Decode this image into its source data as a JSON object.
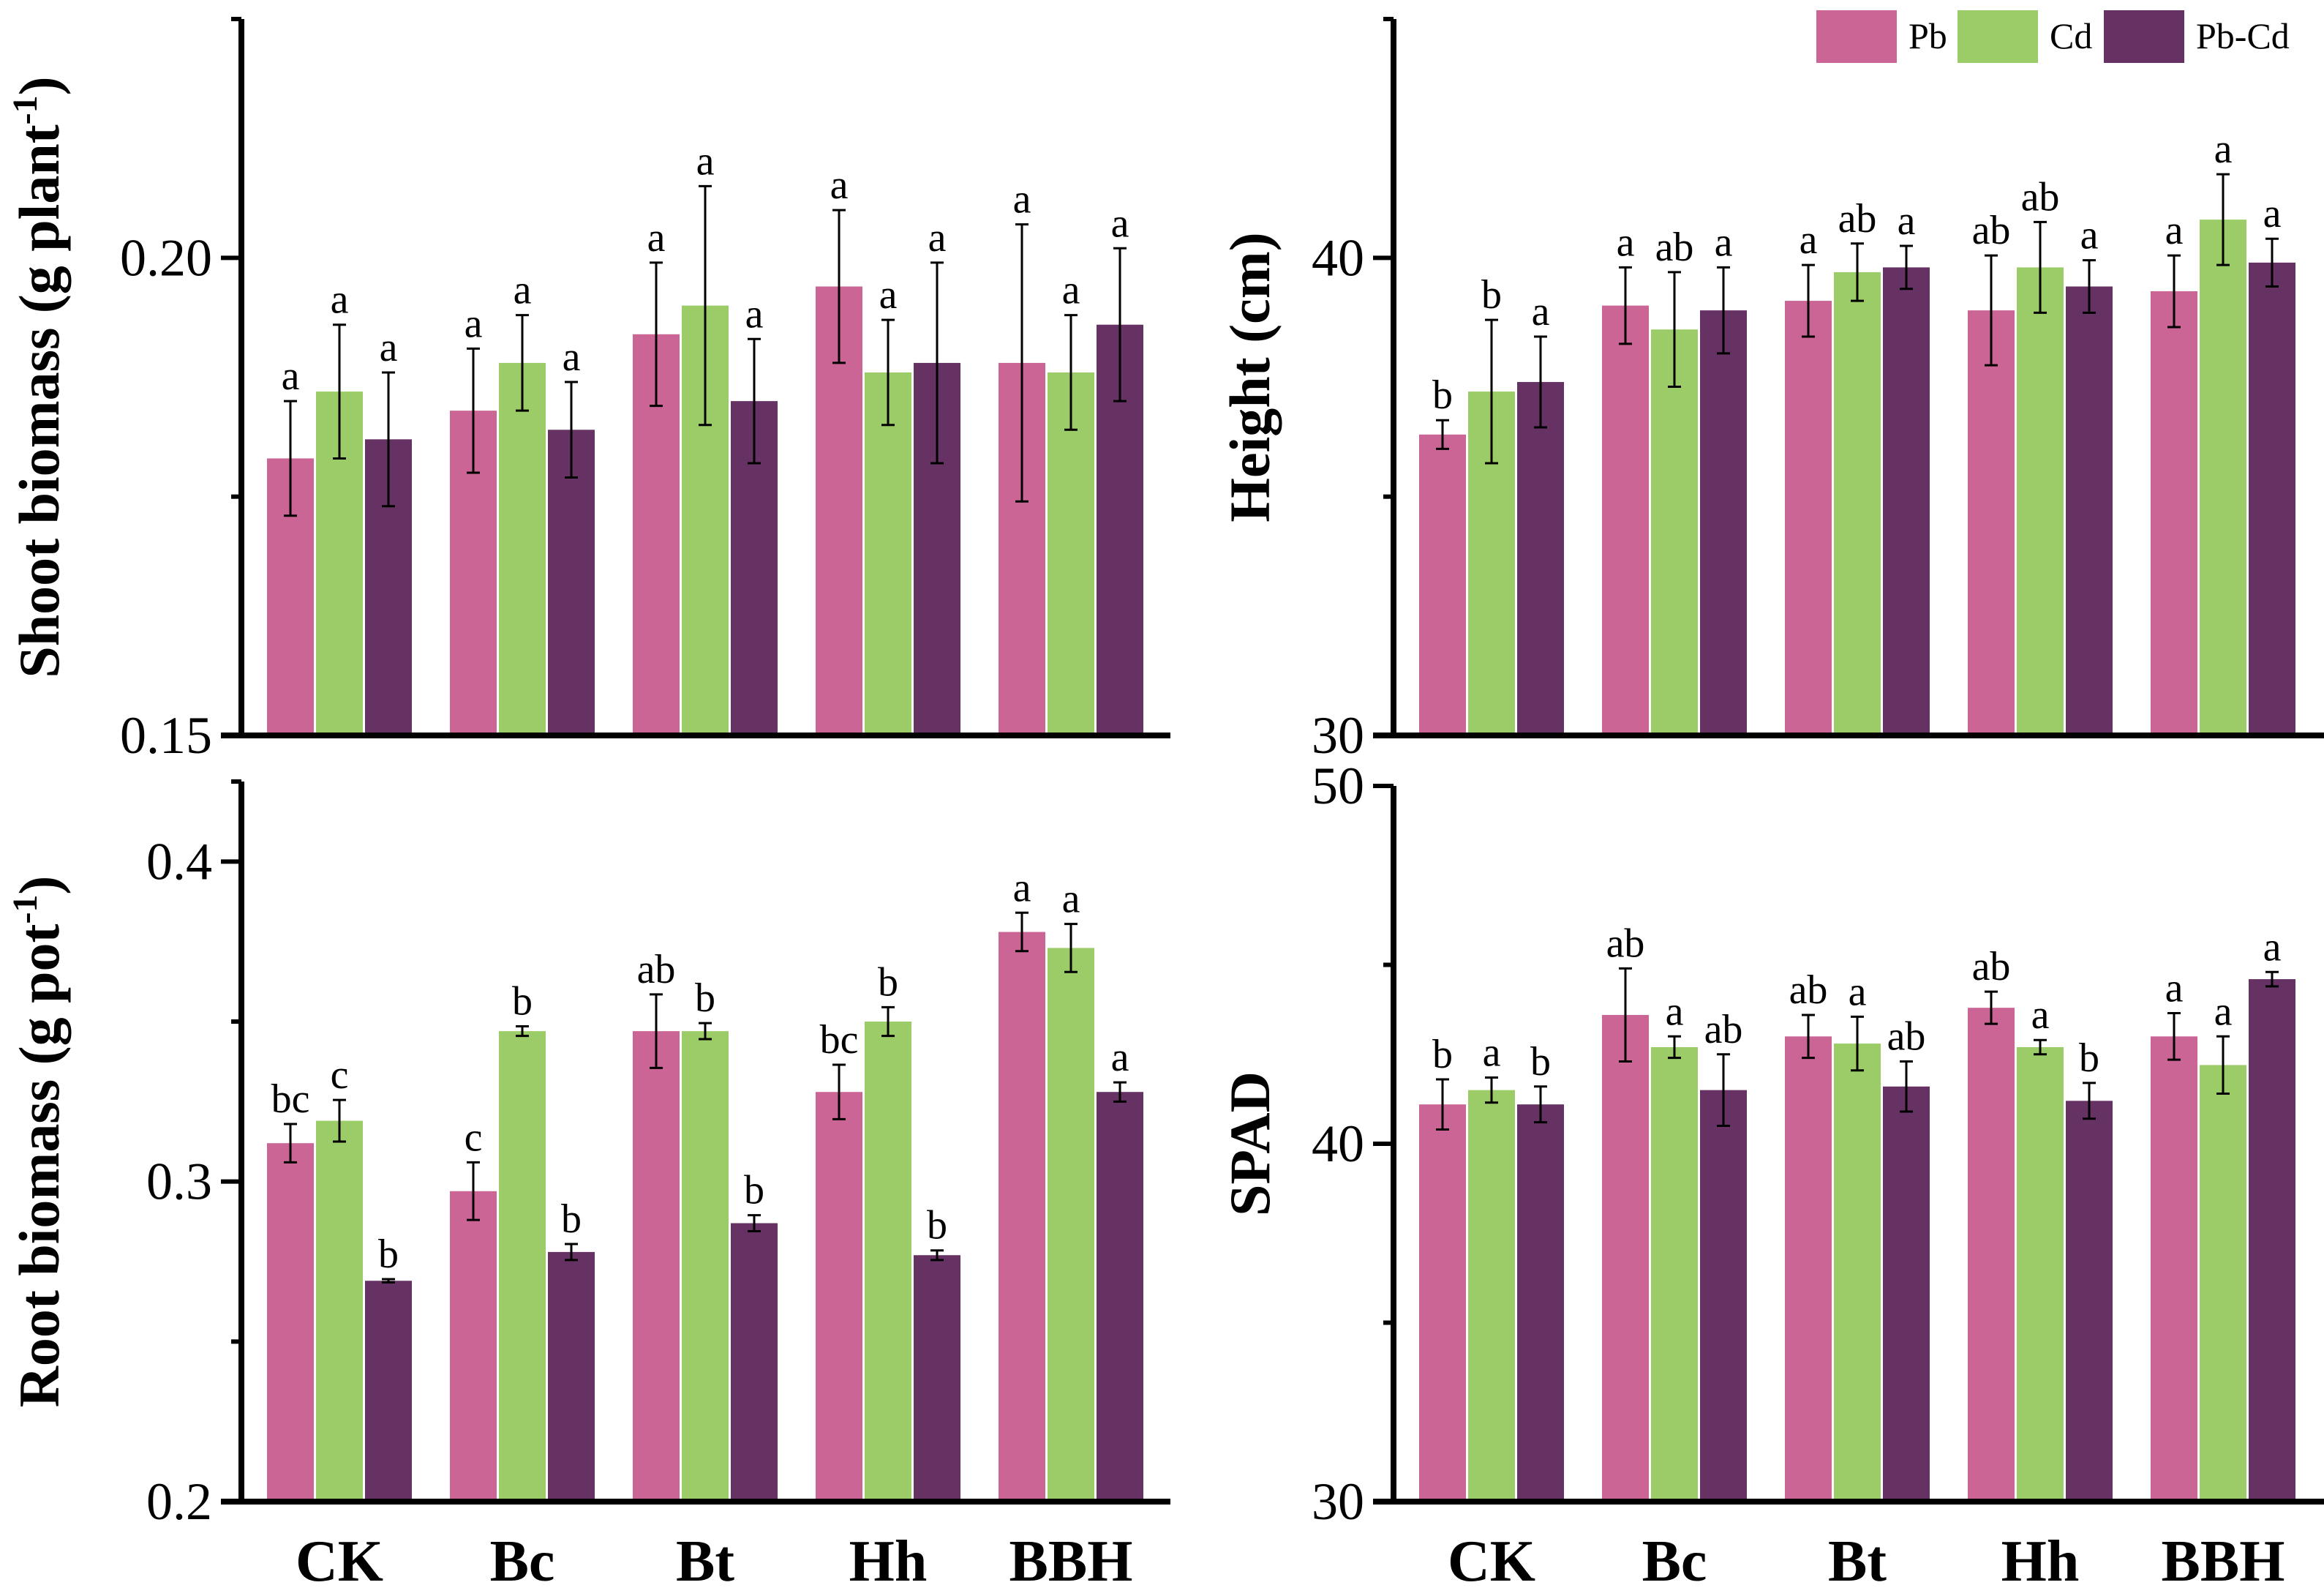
{
  "chart_data": {
    "type": "bar",
    "categories": [
      "CK",
      "Bc",
      "Bt",
      "Hh",
      "BBH"
    ],
    "legend": {
      "position": "top-right",
      "entries": [
        {
          "name": "Pb",
          "color": "#CB6595"
        },
        {
          "name": "Cd",
          "color": "#9BCC67"
        },
        {
          "name": "Pb-Cd",
          "color": "#653263"
        }
      ]
    },
    "panels": [
      {
        "id": "shoot",
        "ylabel": "Shoot biomass (g plant",
        "ylabel_sup": "-1",
        "ylabel_close": ")",
        "ylim": [
          0.15,
          0.225
        ],
        "yticks": [
          0.15,
          0.175,
          0.2
        ],
        "ytick_labels": [
          "0.15",
          "",
          "0.20"
        ],
        "show_xlabels": false,
        "series": [
          {
            "name": "Pb",
            "values": [
              0.179,
              0.184,
              0.192,
              0.197,
              0.189
            ],
            "errors": [
              0.006,
              0.0065,
              0.0075,
              0.008,
              0.0145
            ],
            "letters": [
              "a",
              "a",
              "a",
              "a",
              "a"
            ]
          },
          {
            "name": "Cd",
            "values": [
              0.186,
              0.189,
              0.195,
              0.188,
              0.188
            ],
            "errors": [
              0.007,
              0.005,
              0.0125,
              0.0055,
              0.006
            ],
            "letters": [
              "a",
              "a",
              "a",
              "a",
              "a"
            ]
          },
          {
            "name": "Pb-Cd",
            "values": [
              0.181,
              0.182,
              0.185,
              0.189,
              0.193
            ],
            "errors": [
              0.007,
              0.005,
              0.0065,
              0.0105,
              0.008
            ],
            "letters": [
              "a",
              "a",
              "a",
              "a",
              "a"
            ]
          }
        ]
      },
      {
        "id": "height",
        "ylabel": "Height (cm)",
        "ylabel_sup": "",
        "ylabel_close": "",
        "ylim": [
          30,
          45
        ],
        "yticks": [
          30,
          35,
          40
        ],
        "ytick_labels": [
          "30",
          "",
          "40"
        ],
        "show_xlabels": false,
        "series": [
          {
            "name": "Pb",
            "values": [
              36.3,
              39.0,
              39.1,
              38.9,
              39.3
            ],
            "errors": [
              0.3,
              0.8,
              0.75,
              1.15,
              0.75
            ],
            "letters": [
              "b",
              "a",
              "a",
              "ab",
              "a"
            ]
          },
          {
            "name": "Cd",
            "values": [
              37.2,
              38.5,
              39.7,
              39.8,
              40.8
            ],
            "errors": [
              1.5,
              1.2,
              0.6,
              0.95,
              0.95
            ],
            "letters": [
              "b",
              "ab",
              "ab",
              "ab",
              "a"
            ]
          },
          {
            "name": "Pb-Cd",
            "values": [
              37.4,
              38.9,
              39.8,
              39.4,
              39.9
            ],
            "errors": [
              0.95,
              0.9,
              0.45,
              0.55,
              0.5
            ],
            "letters": [
              "a",
              "a",
              "a",
              "a",
              "a"
            ]
          }
        ]
      },
      {
        "id": "root",
        "ylabel": "Root biomass (g pot",
        "ylabel_sup": "-1",
        "ylabel_close": ")",
        "ylim": [
          0.2,
          0.425
        ],
        "yticks": [
          0.2,
          0.25,
          0.3,
          0.35,
          0.4
        ],
        "ytick_labels": [
          "0.2",
          "",
          "0.3",
          "",
          "0.4"
        ],
        "show_xlabels": true,
        "series": [
          {
            "name": "Pb",
            "values": [
              0.312,
              0.297,
              0.347,
              0.328,
              0.378
            ],
            "errors": [
              0.006,
              0.009,
              0.0115,
              0.0085,
              0.006
            ],
            "letters": [
              "bc",
              "c",
              "ab",
              "bc",
              "a"
            ]
          },
          {
            "name": "Cd",
            "values": [
              0.319,
              0.347,
              0.347,
              0.35,
              0.373
            ],
            "errors": [
              0.0065,
              0.0015,
              0.0025,
              0.0045,
              0.0075
            ],
            "letters": [
              "c",
              "b",
              "b",
              "b",
              "a"
            ]
          },
          {
            "name": "Pb-Cd",
            "values": [
              0.269,
              0.278,
              0.287,
              0.277,
              0.328
            ],
            "errors": [
              0.0005,
              0.0025,
              0.0025,
              0.0015,
              0.003
            ],
            "letters": [
              "b",
              "b",
              "b",
              "b",
              "a"
            ]
          }
        ]
      },
      {
        "id": "spad",
        "ylabel": "SPAD",
        "ylabel_sup": "",
        "ylabel_close": "",
        "ylim": [
          30,
          50
        ],
        "yticks": [
          30,
          35,
          40,
          45,
          50
        ],
        "ytick_labels": [
          "30",
          "",
          "40",
          "",
          "50"
        ],
        "show_xlabels": true,
        "series": [
          {
            "name": "Pb",
            "values": [
              41.1,
              43.6,
              43.0,
              43.8,
              43.0
            ],
            "errors": [
              0.7,
              1.3,
              0.6,
              0.45,
              0.65
            ],
            "letters": [
              "b",
              "ab",
              "ab",
              "ab",
              "a"
            ]
          },
          {
            "name": "Cd",
            "values": [
              41.5,
              42.7,
              42.8,
              42.7,
              42.2
            ],
            "errors": [
              0.35,
              0.3,
              0.75,
              0.2,
              0.8
            ],
            "letters": [
              "a",
              "a",
              "a",
              "a",
              "a"
            ]
          },
          {
            "name": "Pb-Cd",
            "values": [
              41.1,
              41.5,
              41.6,
              41.2,
              44.6
            ],
            "errors": [
              0.5,
              1.0,
              0.7,
              0.5,
              0.2
            ],
            "letters": [
              "b",
              "ab",
              "ab",
              "b",
              "a"
            ]
          }
        ]
      }
    ]
  }
}
